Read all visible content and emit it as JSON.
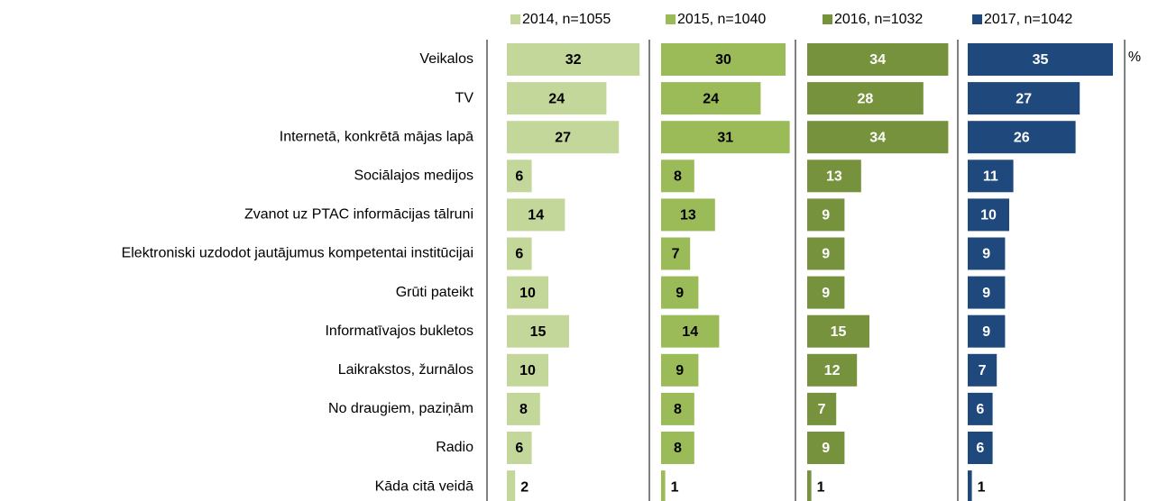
{
  "chart_data": {
    "type": "bar",
    "orientation": "horizontal",
    "layout": "panels",
    "unit": "%",
    "categories": [
      "Veikalos",
      "TV",
      "Internetā, konkrētā mājas lapā",
      "Sociālajos medijos",
      "Zvanot uz PTAC informācijas tālruni",
      "Elektroniski uzdodot jautājumus kompetentai institūcijai",
      "Grūti pateikt",
      "Informatīvajos bukletos",
      "Laikrakstos, žurnālos",
      "No draugiem, paziņām",
      "Radio",
      "Kāda citā veidā"
    ],
    "series": [
      {
        "name": "2014, n=1055",
        "color": "#c4d79b",
        "label_color": "#000000",
        "values": [
          32,
          24,
          27,
          6,
          14,
          6,
          10,
          15,
          10,
          8,
          6,
          2
        ]
      },
      {
        "name": "2015, n=1040",
        "color": "#9bbb59",
        "label_color": "#000000",
        "values": [
          30,
          24,
          31,
          8,
          13,
          7,
          9,
          14,
          9,
          8,
          8,
          1
        ]
      },
      {
        "name": "2016, n=1032",
        "color": "#76923c",
        "label_color": "#ffffff",
        "values": [
          34,
          28,
          34,
          13,
          9,
          9,
          9,
          15,
          12,
          7,
          9,
          1
        ]
      },
      {
        "name": "2017, n=1042",
        "color": "#1f497d",
        "label_color": "#ffffff",
        "values": [
          35,
          27,
          26,
          11,
          10,
          9,
          9,
          9,
          7,
          6,
          6,
          1
        ]
      }
    ]
  }
}
